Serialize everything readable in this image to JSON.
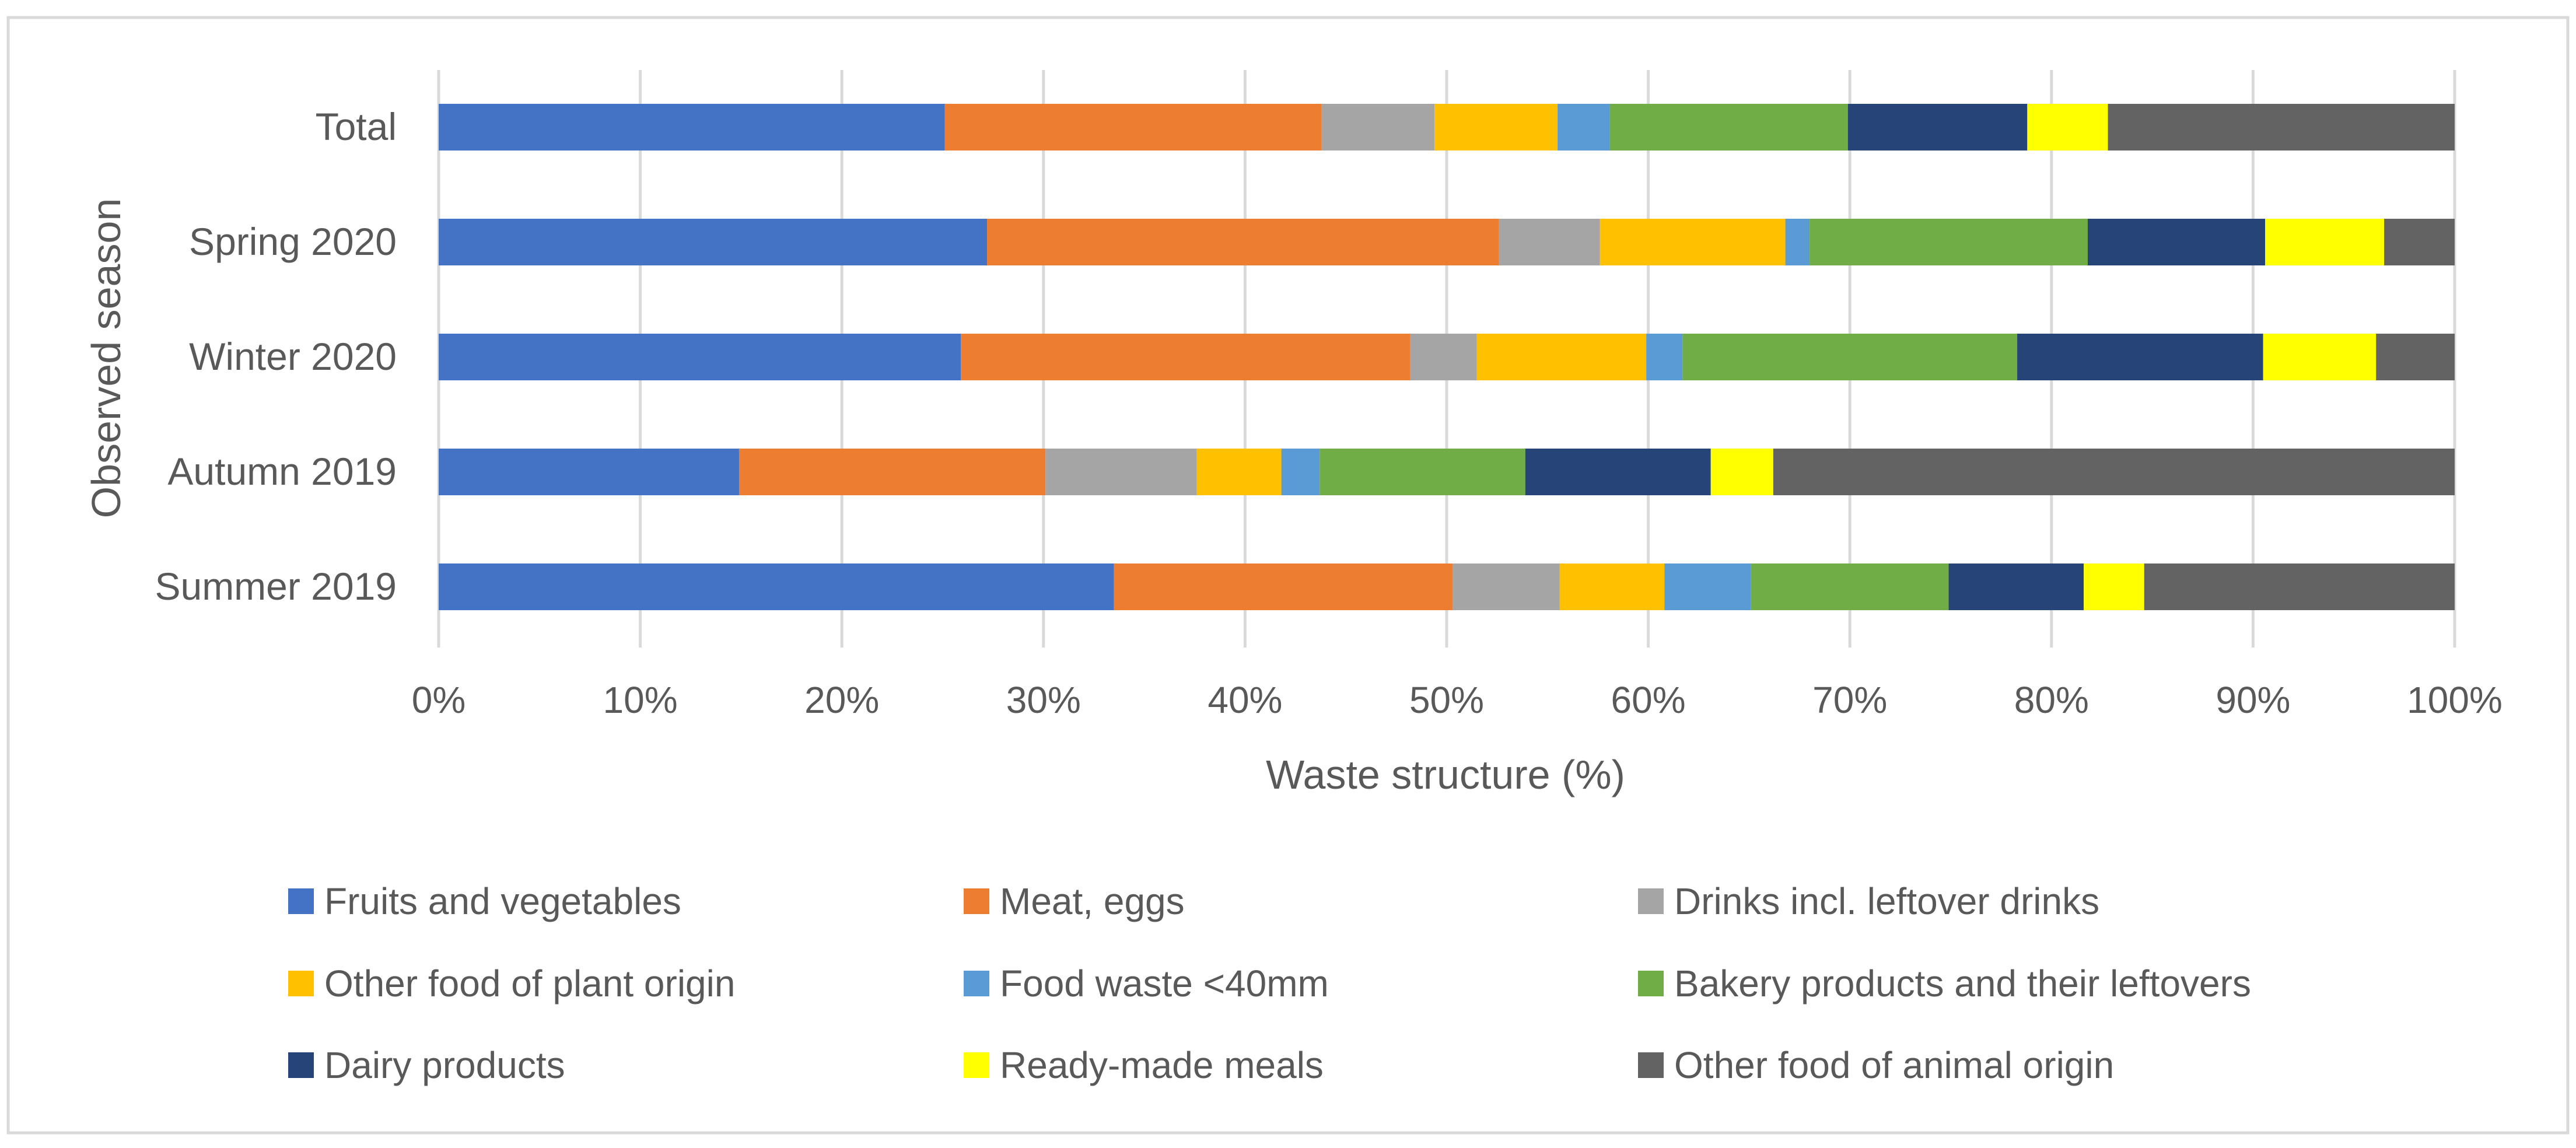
{
  "chart_data": {
    "type": "bar",
    "orientation": "horizontal",
    "stacked": "percent",
    "title": "",
    "xlabel": "Waste structure (%)",
    "ylabel": "Observed season",
    "xlim": [
      0,
      100
    ],
    "x_ticks": [
      "0%",
      "10%",
      "20%",
      "30%",
      "40%",
      "50%",
      "60%",
      "70%",
      "80%",
      "90%",
      "100%"
    ],
    "grid": true,
    "legend_position": "bottom",
    "categories": [
      "Total",
      "Spring 2020",
      "Winter 2020",
      "Autumn 2019",
      "Summer 2019"
    ],
    "series": [
      {
        "name": "Fruits and vegetables",
        "color": "#4472c4",
        "values": [
          25.1,
          27.2,
          25.9,
          14.9,
          33.5
        ]
      },
      {
        "name": "Meat, eggs",
        "color": "#ed7d31",
        "values": [
          18.7,
          25.4,
          22.3,
          15.2,
          16.8
        ]
      },
      {
        "name": "Drinks incl. leftover drinks",
        "color": "#a5a5a5",
        "values": [
          5.6,
          5.0,
          3.3,
          7.5,
          5.3
        ]
      },
      {
        "name": "Other food of plant origin",
        "color": "#ffc000",
        "values": [
          6.1,
          9.2,
          8.4,
          4.2,
          5.2
        ]
      },
      {
        "name": "Food waste <40mm",
        "color": "#5b9bd5",
        "values": [
          2.6,
          1.2,
          1.8,
          1.9,
          4.3
        ]
      },
      {
        "name": "Bakery products and their leftovers",
        "color": "#70ad47",
        "values": [
          11.8,
          13.8,
          16.6,
          10.2,
          9.8
        ]
      },
      {
        "name": "Dairy products",
        "color": "#264478",
        "values": [
          8.9,
          8.8,
          12.2,
          9.2,
          6.7
        ]
      },
      {
        "name": "Ready-made meals",
        "color": "#ffff00",
        "values": [
          4.0,
          5.9,
          5.6,
          3.1,
          3.0
        ]
      },
      {
        "name": "Other food of animal origin",
        "color": "#636363",
        "values": [
          17.2,
          3.5,
          3.9,
          33.8,
          15.4
        ]
      }
    ]
  }
}
